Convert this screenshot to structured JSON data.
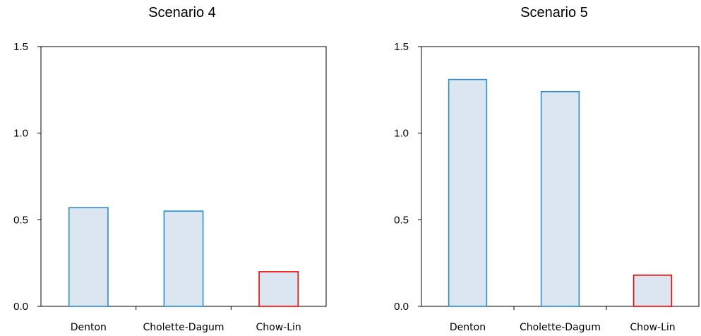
{
  "chart_data": [
    {
      "type": "bar",
      "title": "Scenario 4",
      "categories": [
        "Denton",
        "Cholette-Dagum",
        "Chow-Lin"
      ],
      "values": [
        0.57,
        0.55,
        0.2
      ],
      "ylim": [
        0,
        1.5
      ],
      "yticks": [
        "0.0",
        "0.5",
        "1.0",
        "1.5"
      ],
      "bar_fill": "#dce6f1",
      "bar_colors": [
        "#2e8bcf",
        "#2e8bcf",
        "#ff0000"
      ],
      "grid": false
    },
    {
      "type": "bar",
      "title": "Scenario 5",
      "categories": [
        "Denton",
        "Cholette-Dagum",
        "Chow-Lin"
      ],
      "values": [
        1.31,
        1.24,
        0.18
      ],
      "ylim": [
        0,
        1.5
      ],
      "yticks": [
        "0.0",
        "0.5",
        "1.0",
        "1.5"
      ],
      "bar_fill": "#dce6f1",
      "bar_colors": [
        "#2e8bcf",
        "#2e8bcf",
        "#ff0000"
      ],
      "grid": false
    }
  ]
}
